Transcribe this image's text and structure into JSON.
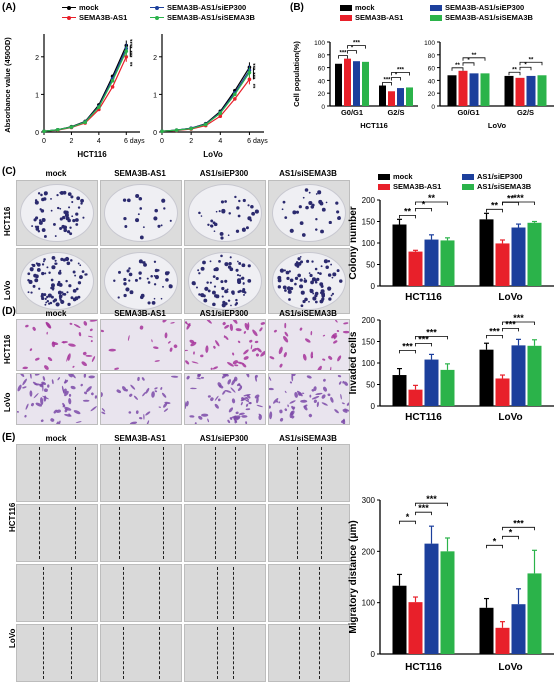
{
  "panel_labels": [
    "(A)",
    "(B)",
    "(C)",
    "(D)",
    "(E)"
  ],
  "colors": {
    "mock": "#000000",
    "sema3b_as1": "#e8202a",
    "siep300": "#1c3f9c",
    "sisema3b": "#2bb34a"
  },
  "legend_A": [
    "mock",
    "SEMA3B-AS1",
    "SEMA3B-AS1/siEP300",
    "SEMA3B-AS1/siSEMA3B"
  ],
  "legend_B": [
    "mock",
    "SEMA3B-AS1",
    "SEMA3B-AS1/siEP300",
    "SEMA3B-AS1/siSEMA3B"
  ],
  "legend_C": [
    "mock",
    "SEMA3B-AS1",
    "AS1/siEP300",
    "AS1/siSEMA3B"
  ],
  "image_columns": [
    "mock",
    "SEMA3B-AS1",
    "AS1/siEP300",
    "AS1/siSEMA3B"
  ],
  "image_rows": [
    "HCT116",
    "LoVo"
  ],
  "chart_data": [
    {
      "type": "line",
      "panel": "A",
      "subtitle": "HCT116",
      "xlabel": "",
      "ylabel": "Absorbance value (450OD)",
      "x": [
        0,
        1,
        2,
        3,
        4,
        5,
        6
      ],
      "xticks": [
        "0",
        "2",
        "4",
        "6 days"
      ],
      "xlim": [
        0,
        7
      ],
      "ylim": [
        0,
        2.5
      ],
      "yticks": [
        "0",
        "1",
        "2"
      ],
      "series": [
        {
          "name": "mock",
          "values": [
            0.02,
            0.06,
            0.14,
            0.28,
            0.72,
            1.48,
            2.3
          ]
        },
        {
          "name": "SEMA3B-AS1",
          "values": [
            0.02,
            0.05,
            0.12,
            0.24,
            0.6,
            1.2,
            2.0
          ]
        },
        {
          "name": "SEMA3B-AS1/siEP300",
          "values": [
            0.02,
            0.06,
            0.13,
            0.27,
            0.68,
            1.42,
            2.22
          ]
        },
        {
          "name": "SEMA3B-AS1/siSEMA3B",
          "values": [
            0.02,
            0.06,
            0.13,
            0.26,
            0.66,
            1.36,
            2.15
          ]
        }
      ],
      "annotations": [
        "****",
        "***",
        "**"
      ]
    },
    {
      "type": "line",
      "panel": "A",
      "subtitle": "LoVo",
      "xlabel": "",
      "ylabel": "",
      "x": [
        0,
        1,
        2,
        3,
        4,
        5,
        6
      ],
      "xticks": [
        "0",
        "2",
        "4",
        "6 days"
      ],
      "xlim": [
        0,
        7
      ],
      "ylim": [
        0,
        2.5
      ],
      "yticks": [
        "0",
        "1",
        "2"
      ],
      "series": [
        {
          "name": "mock",
          "values": [
            0.02,
            0.05,
            0.1,
            0.22,
            0.55,
            1.1,
            1.72
          ]
        },
        {
          "name": "SEMA3B-AS1",
          "values": [
            0.02,
            0.04,
            0.08,
            0.17,
            0.42,
            0.88,
            1.4
          ]
        },
        {
          "name": "SEMA3B-AS1/siEP300",
          "values": [
            0.02,
            0.05,
            0.1,
            0.21,
            0.52,
            1.04,
            1.64
          ]
        },
        {
          "name": "SEMA3B-AS1/siSEMA3B",
          "values": [
            0.02,
            0.05,
            0.09,
            0.2,
            0.5,
            1.0,
            1.58
          ]
        }
      ],
      "annotations": [
        "***",
        "***",
        "**"
      ]
    },
    {
      "type": "bar",
      "panel": "B",
      "subtitle": "HCT116",
      "ylabel": "Cell population(%)",
      "ylim": [
        0,
        100
      ],
      "yticks": [
        "0",
        "20",
        "40",
        "60",
        "80",
        "100"
      ],
      "categories": [
        "G0/G1",
        "G2/S"
      ],
      "series": [
        {
          "name": "mock",
          "values": [
            66,
            32
          ]
        },
        {
          "name": "SEMA3B-AS1",
          "values": [
            74,
            23
          ]
        },
        {
          "name": "SEMA3B-AS1/siEP300",
          "values": [
            70,
            28
          ]
        },
        {
          "name": "SEMA3B-AS1/siSEMA3B",
          "values": [
            69,
            29
          ]
        }
      ],
      "annotations": [
        "***",
        "*",
        "***",
        "***",
        "*",
        "***"
      ]
    },
    {
      "type": "bar",
      "panel": "B",
      "subtitle": "LoVo",
      "ylabel": "",
      "ylim": [
        0,
        100
      ],
      "yticks": [
        "0",
        "20",
        "40",
        "60",
        "80",
        "100"
      ],
      "categories": [
        "G0/G1",
        "G2/S"
      ],
      "series": [
        {
          "name": "mock",
          "values": [
            48,
            47
          ]
        },
        {
          "name": "SEMA3B-AS1",
          "values": [
            55,
            44
          ]
        },
        {
          "name": "SEMA3B-AS1/siEP300",
          "values": [
            51,
            47
          ]
        },
        {
          "name": "SEMA3B-AS1/siSEMA3B",
          "values": [
            51,
            48
          ]
        }
      ],
      "annotations": [
        "**",
        "*",
        "**",
        "**",
        "*",
        "**"
      ]
    },
    {
      "type": "bar",
      "panel": "C",
      "ylabel": "Colony number",
      "ylim": [
        0,
        200
      ],
      "yticks": [
        "0",
        "50",
        "100",
        "150",
        "200"
      ],
      "categories": [
        "HCT116",
        "LoVo"
      ],
      "series": [
        {
          "name": "mock",
          "values": [
            143,
            155
          ],
          "errors": [
            12,
            14
          ]
        },
        {
          "name": "SEMA3B-AS1",
          "values": [
            80,
            99
          ],
          "errors": [
            3,
            8
          ]
        },
        {
          "name": "AS1/siEP300",
          "values": [
            108,
            136
          ],
          "errors": [
            11,
            8
          ]
        },
        {
          "name": "AS1/siSEMA3B",
          "values": [
            106,
            147
          ],
          "errors": [
            6,
            3
          ]
        }
      ],
      "annotations": [
        "**",
        "*",
        "**",
        "**",
        "**",
        "***"
      ]
    },
    {
      "type": "bar",
      "panel": "D",
      "ylabel": "Invaded cells",
      "ylim": [
        0,
        200
      ],
      "yticks": [
        "0",
        "50",
        "100",
        "150",
        "200"
      ],
      "categories": [
        "HCT116",
        "LoVo"
      ],
      "series": [
        {
          "name": "mock",
          "values": [
            72,
            131
          ],
          "errors": [
            15,
            15
          ]
        },
        {
          "name": "SEMA3B-AS1",
          "values": [
            38,
            64
          ],
          "errors": [
            10,
            8
          ]
        },
        {
          "name": "AS1/siEP300",
          "values": [
            108,
            141
          ],
          "errors": [
            12,
            14
          ]
        },
        {
          "name": "AS1/siSEMA3B",
          "values": [
            84,
            140
          ],
          "errors": [
            14,
            14
          ]
        }
      ],
      "annotations": [
        "***",
        "***",
        "***",
        "***",
        "***",
        "***"
      ]
    },
    {
      "type": "bar",
      "panel": "E",
      "ylabel": "Migratory distance (μm)",
      "ylim": [
        0,
        300
      ],
      "yticks": [
        "0",
        "100",
        "200",
        "300"
      ],
      "categories": [
        "HCT116",
        "LoVo"
      ],
      "series": [
        {
          "name": "mock",
          "values": [
            133,
            90
          ],
          "errors": [
            22,
            18
          ]
        },
        {
          "name": "SEMA3B-AS1",
          "values": [
            101,
            51
          ],
          "errors": [
            10,
            12
          ]
        },
        {
          "name": "AS1/siEP300",
          "values": [
            215,
            97
          ],
          "errors": [
            34,
            30
          ]
        },
        {
          "name": "AS1/siSEMA3B",
          "values": [
            200,
            157
          ],
          "errors": [
            26,
            45
          ]
        }
      ],
      "annotations": [
        "*",
        "***",
        "***",
        "*",
        "*",
        "***"
      ]
    }
  ]
}
